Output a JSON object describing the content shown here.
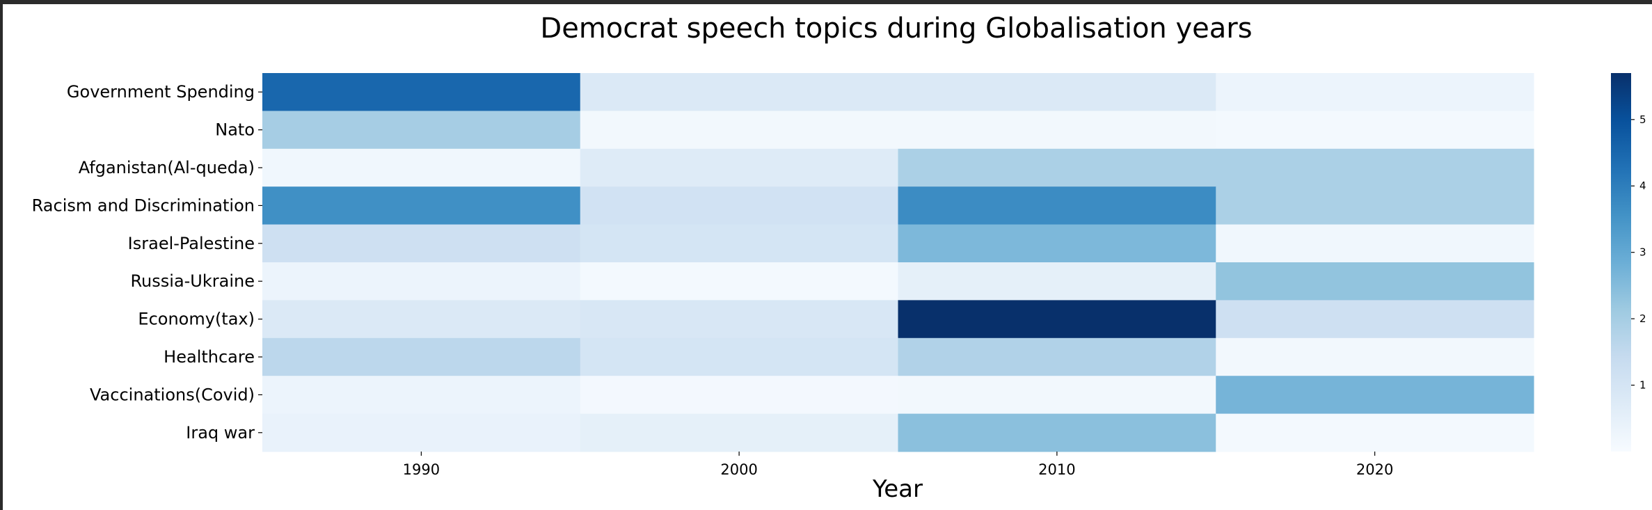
{
  "chart_data": {
    "type": "heatmap",
    "title": "Democrat speech topics during Globalisation years",
    "xlabel": "Year",
    "ylabel": "",
    "x": [
      "1990",
      "2000",
      "2010",
      "2020"
    ],
    "y": [
      "Government Spending",
      "Nato",
      "Afganistan(Al-queda)",
      "Racism and Discrimination",
      "Israel-Palestine",
      "Russia-Ukraine",
      "Economy(tax)",
      "Healthcare",
      "Vaccinations(Covid)",
      "Iraq war"
    ],
    "values": [
      [
        4.5,
        0.8,
        0.8,
        0.3
      ],
      [
        2.0,
        0.15,
        0.15,
        0.1
      ],
      [
        0.2,
        0.7,
        1.9,
        1.9
      ],
      [
        3.6,
        1.1,
        3.7,
        1.9
      ],
      [
        1.2,
        1.0,
        2.6,
        0.2
      ],
      [
        0.3,
        0.1,
        0.5,
        2.3
      ],
      [
        0.8,
        0.9,
        5.7,
        1.2
      ],
      [
        1.6,
        1.0,
        1.8,
        0.15
      ],
      [
        0.3,
        0.12,
        0.15,
        2.7
      ],
      [
        0.4,
        0.5,
        2.4,
        0.1
      ]
    ],
    "colormap": "Blues",
    "colorbar_ticks": [
      1,
      2,
      3,
      4,
      5
    ],
    "vmin": 0,
    "vmax": 5.7,
    "grid": false
  }
}
